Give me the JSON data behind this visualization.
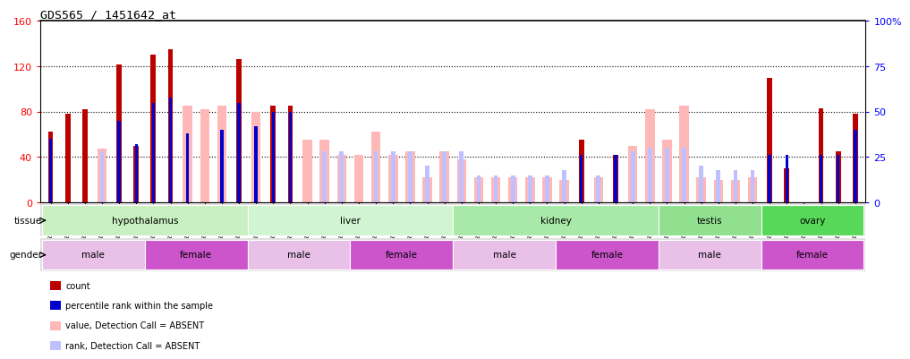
{
  "title": "GDS565 / 1451642_at",
  "samples": [
    "GSM19215",
    "GSM19216",
    "GSM19217",
    "GSM19218",
    "GSM19219",
    "GSM19220",
    "GSM19221",
    "GSM19222",
    "GSM19223",
    "GSM19224",
    "GSM19225",
    "GSM19226",
    "GSM19227",
    "GSM19228",
    "GSM19229",
    "GSM19230",
    "GSM19231",
    "GSM19232",
    "GSM19233",
    "GSM19234",
    "GSM19235",
    "GSM19236",
    "GSM19237",
    "GSM19238",
    "GSM19239",
    "GSM19240",
    "GSM19241",
    "GSM19242",
    "GSM19243",
    "GSM19244",
    "GSM19245",
    "GSM19246",
    "GSM19247",
    "GSM19248",
    "GSM19249",
    "GSM19250",
    "GSM19251",
    "GSM19252",
    "GSM19253",
    "GSM19254",
    "GSM19255",
    "GSM19256",
    "GSM19257",
    "GSM19258",
    "GSM19259",
    "GSM19260",
    "GSM19261",
    "GSM19262"
  ],
  "count": [
    62,
    78,
    82,
    0,
    122,
    50,
    130,
    135,
    0,
    0,
    0,
    126,
    0,
    85,
    85,
    0,
    0,
    0,
    0,
    0,
    0,
    0,
    0,
    0,
    0,
    0,
    0,
    0,
    0,
    0,
    0,
    55,
    0,
    42,
    0,
    0,
    0,
    0,
    0,
    0,
    0,
    0,
    110,
    30,
    0,
    83,
    45,
    78
  ],
  "absent_value": [
    0,
    0,
    0,
    47,
    0,
    0,
    0,
    0,
    85,
    82,
    85,
    0,
    80,
    0,
    0,
    55,
    55,
    42,
    42,
    62,
    42,
    45,
    22,
    45,
    38,
    22,
    22,
    22,
    22,
    22,
    20,
    0,
    22,
    0,
    50,
    82,
    55,
    85,
    22,
    20,
    20,
    22,
    0,
    0,
    0,
    0,
    0,
    0
  ],
  "percentile_rank": [
    35,
    0,
    0,
    0,
    45,
    32,
    55,
    58,
    38,
    0,
    40,
    55,
    42,
    50,
    50,
    0,
    0,
    0,
    0,
    0,
    0,
    0,
    0,
    0,
    0,
    0,
    0,
    0,
    0,
    0,
    0,
    26,
    0,
    26,
    0,
    0,
    0,
    0,
    0,
    0,
    0,
    0,
    26,
    26,
    0,
    26,
    26,
    40
  ],
  "absent_rank": [
    0,
    0,
    0,
    28,
    0,
    0,
    0,
    0,
    0,
    0,
    0,
    0,
    0,
    0,
    0,
    0,
    28,
    28,
    0,
    28,
    28,
    28,
    20,
    28,
    28,
    15,
    15,
    15,
    15,
    15,
    18,
    0,
    15,
    0,
    28,
    30,
    30,
    30,
    20,
    18,
    18,
    18,
    0,
    0,
    0,
    0,
    0,
    0
  ],
  "tissues": [
    {
      "name": "hypothalamus",
      "start": 0,
      "end": 12,
      "color": "#c8f0c0"
    },
    {
      "name": "liver",
      "start": 12,
      "end": 24,
      "color": "#d0f5d0"
    },
    {
      "name": "kidney",
      "start": 24,
      "end": 36,
      "color": "#a8e8a8"
    },
    {
      "name": "testis",
      "start": 36,
      "end": 42,
      "color": "#90e090"
    },
    {
      "name": "ovary",
      "start": 42,
      "end": 48,
      "color": "#58d858"
    }
  ],
  "genders": [
    {
      "name": "male",
      "start": 0,
      "end": 6,
      "color": "#e8c0e8"
    },
    {
      "name": "female",
      "start": 6,
      "end": 12,
      "color": "#cc55cc"
    },
    {
      "name": "male",
      "start": 12,
      "end": 18,
      "color": "#e8c0e8"
    },
    {
      "name": "female",
      "start": 18,
      "end": 24,
      "color": "#cc55cc"
    },
    {
      "name": "male",
      "start": 24,
      "end": 30,
      "color": "#e8c0e8"
    },
    {
      "name": "female",
      "start": 30,
      "end": 36,
      "color": "#cc55cc"
    },
    {
      "name": "male",
      "start": 36,
      "end": 42,
      "color": "#e8c0e8"
    },
    {
      "name": "female",
      "start": 42,
      "end": 48,
      "color": "#cc55cc"
    }
  ],
  "ylim_left": [
    0,
    160
  ],
  "ylim_right": [
    0,
    100
  ],
  "yticks_left": [
    0,
    40,
    80,
    120,
    160
  ],
  "yticks_right": [
    0,
    25,
    50,
    75,
    100
  ],
  "color_count": "#bb0000",
  "color_absent_value": "#ffb8b8",
  "color_percentile": "#0000cc",
  "color_absent_rank": "#c0c0ff",
  "legend_items": [
    {
      "color": "#bb0000",
      "label": "count"
    },
    {
      "color": "#0000cc",
      "label": "percentile rank within the sample"
    },
    {
      "color": "#ffb8b8",
      "label": "value, Detection Call = ABSENT"
    },
    {
      "color": "#c0c0ff",
      "label": "rank, Detection Call = ABSENT"
    }
  ]
}
